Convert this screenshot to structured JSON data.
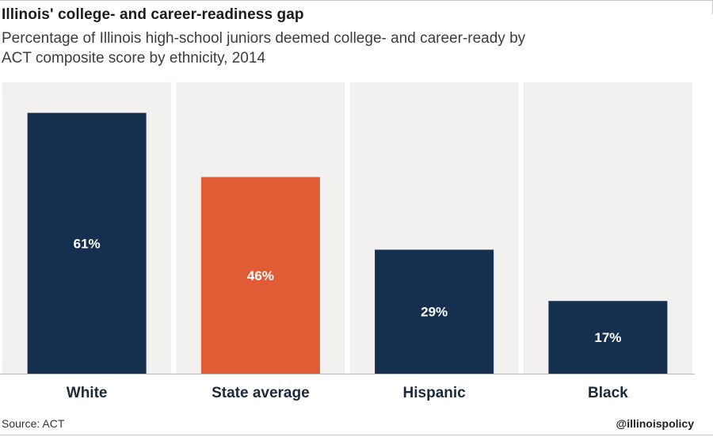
{
  "title": "Illinois' college- and career-readiness gap",
  "subtitle": "Percentage of Illinois high-school juniors deemed college- and career-ready by ACT composite score by ethnicity, 2014",
  "source": "Source: ACT",
  "handle": "@illinoispolicy",
  "colors": {
    "navy": "#15304f",
    "orange": "#e05c34",
    "panel": "#f3f0f0",
    "value_label": "#ffffff",
    "category_label": "#1b2a3a"
  },
  "chart_data": {
    "type": "bar",
    "title": "Illinois' college- and career-readiness gap",
    "subtitle": "Percentage of Illinois high-school juniors deemed college- and career-ready by ACT composite score by ethnicity, 2014",
    "categories": [
      "White",
      "State average",
      "Hispanic",
      "Black"
    ],
    "values": [
      61,
      46,
      29,
      17
    ],
    "value_labels": [
      "61%",
      "46%",
      "29%",
      "17%"
    ],
    "bar_colors": [
      "#15304f",
      "#e05c34",
      "#15304f",
      "#15304f"
    ],
    "ylim": [
      0,
      70
    ],
    "xlabel": "",
    "ylabel": "",
    "grid": false,
    "legend": "none"
  }
}
